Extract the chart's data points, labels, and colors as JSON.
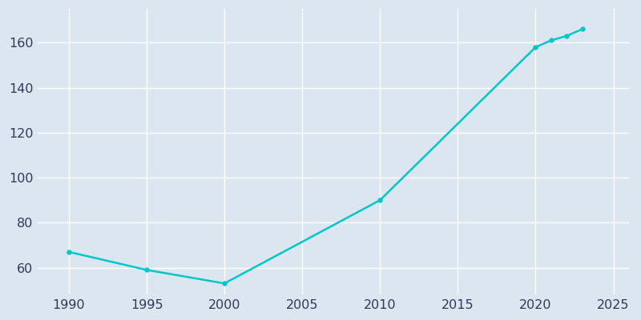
{
  "years": [
    1990,
    1995,
    2000,
    2010,
    2020,
    2021,
    2022,
    2023
  ],
  "population": [
    67,
    59,
    53,
    90,
    158,
    161,
    163,
    166
  ],
  "line_color": "#00c8c8",
  "marker_style": "o",
  "marker_size": 4,
  "plot_background_color": "#dce6f0",
  "figure_background_color": "#dce6f0",
  "grid_color": "#ffffff",
  "tick_label_color": "#2d3a5a",
  "xlim": [
    1988,
    2026
  ],
  "ylim": [
    48,
    175
  ],
  "xticks": [
    1990,
    1995,
    2000,
    2005,
    2010,
    2015,
    2020,
    2025
  ],
  "yticks": [
    60,
    80,
    100,
    120,
    140,
    160
  ],
  "xlabel": "",
  "ylabel": ""
}
